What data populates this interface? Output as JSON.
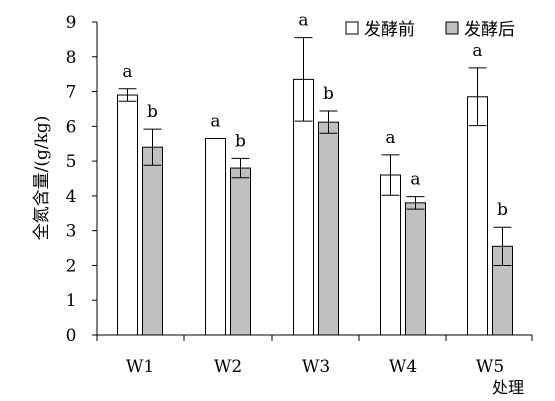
{
  "chart_data": {
    "type": "bar",
    "ylabel": "全氮含量/(g/kg)",
    "xlabel": "处理",
    "categories": [
      "W1",
      "W2",
      "W3",
      "W4",
      "W5"
    ],
    "ylim": [
      0,
      9
    ],
    "yticks": [
      "0",
      "1",
      "2",
      "3",
      "4",
      "5",
      "6",
      "7",
      "8",
      "9"
    ],
    "grid": false,
    "legend_position": "top-right",
    "series": [
      {
        "name": "发酵前",
        "fill": "#ffffff",
        "values": [
          6.9,
          5.65,
          7.35,
          4.6,
          6.85
        ],
        "errors": [
          0.18,
          0.0,
          1.2,
          0.58,
          0.83
        ],
        "labels": [
          "a",
          "a",
          "a",
          "a",
          "a"
        ]
      },
      {
        "name": "发酵后",
        "fill": "#c0c0c0",
        "values": [
          5.4,
          4.8,
          6.12,
          3.8,
          2.55
        ],
        "errors": [
          0.52,
          0.28,
          0.32,
          0.18,
          0.55
        ],
        "labels": [
          "b",
          "b",
          "b",
          "a",
          "b"
        ]
      }
    ]
  }
}
